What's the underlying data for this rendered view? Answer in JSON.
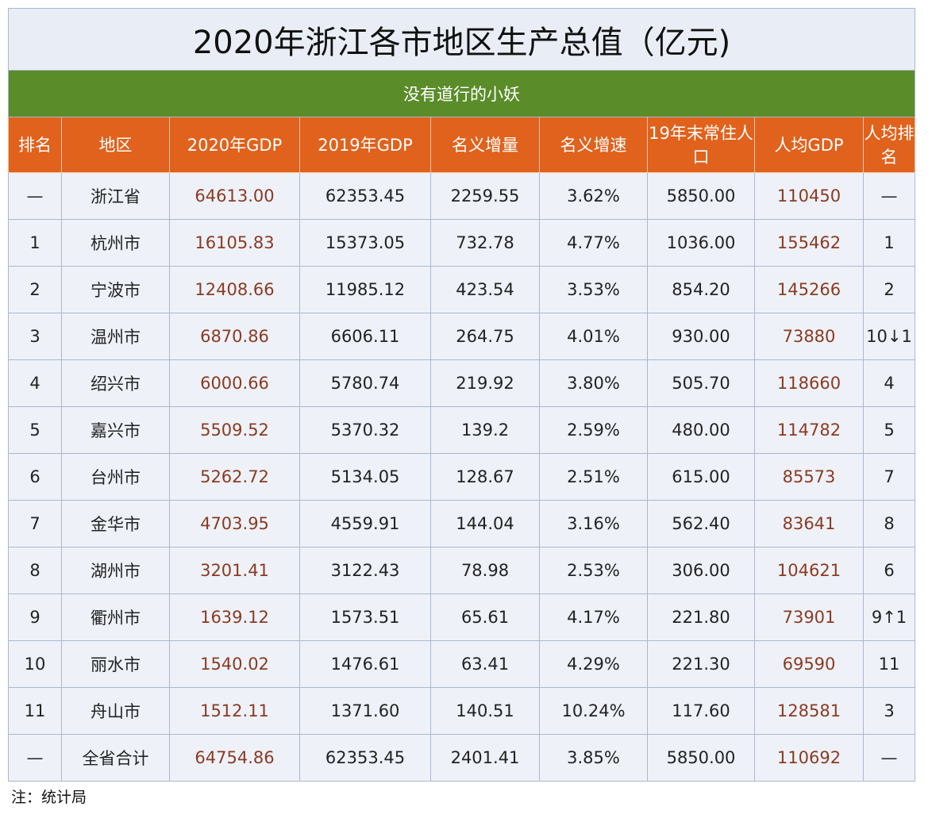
{
  "header": {
    "title": "2020年浙江各市地区生产总值（亿元)",
    "subtitle": "没有道行的小妖"
  },
  "table": {
    "columns": [
      "排名",
      "地区",
      "2020年GDP",
      "2019年GDP",
      "名义增量",
      "名义增速",
      "19年末常住人口",
      "人均GDP",
      "人均排名"
    ],
    "rows": [
      [
        "—",
        "浙江省",
        "64613.00",
        "62353.45",
        "2259.55",
        "3.62%",
        "5850.00",
        "110450",
        "—"
      ],
      [
        "1",
        "杭州市",
        "16105.83",
        "15373.05",
        "732.78",
        "4.77%",
        "1036.00",
        "155462",
        "1"
      ],
      [
        "2",
        "宁波市",
        "12408.66",
        "11985.12",
        "423.54",
        "3.53%",
        "854.20",
        "145266",
        "2"
      ],
      [
        "3",
        "温州市",
        "6870.86",
        "6606.11",
        "264.75",
        "4.01%",
        "930.00",
        "73880",
        "10↓1"
      ],
      [
        "4",
        "绍兴市",
        "6000.66",
        "5780.74",
        "219.92",
        "3.80%",
        "505.70",
        "118660",
        "4"
      ],
      [
        "5",
        "嘉兴市",
        "5509.52",
        "5370.32",
        "139.2",
        "2.59%",
        "480.00",
        "114782",
        "5"
      ],
      [
        "6",
        "台州市",
        "5262.72",
        "5134.05",
        "128.67",
        "2.51%",
        "615.00",
        "85573",
        "7"
      ],
      [
        "7",
        "金华市",
        "4703.95",
        "4559.91",
        "144.04",
        "3.16%",
        "562.40",
        "83641",
        "8"
      ],
      [
        "8",
        "湖州市",
        "3201.41",
        "3122.43",
        "78.98",
        "2.53%",
        "306.00",
        "104621",
        "6"
      ],
      [
        "9",
        "衢州市",
        "1639.12",
        "1573.51",
        "65.61",
        "4.17%",
        "221.80",
        "73901",
        "9↑1"
      ],
      [
        "10",
        "丽水市",
        "1540.02",
        "1476.61",
        "63.41",
        "4.29%",
        "221.30",
        "69590",
        "11"
      ],
      [
        "11",
        "舟山市",
        "1512.11",
        "1371.60",
        "140.51",
        "10.24%",
        "117.60",
        "128581",
        "3"
      ],
      [
        "—",
        "全省合计",
        "64754.86",
        "62353.45",
        "2401.41",
        "3.85%",
        "5850.00",
        "110692",
        "—"
      ]
    ]
  },
  "footnote": "注：统计局"
}
